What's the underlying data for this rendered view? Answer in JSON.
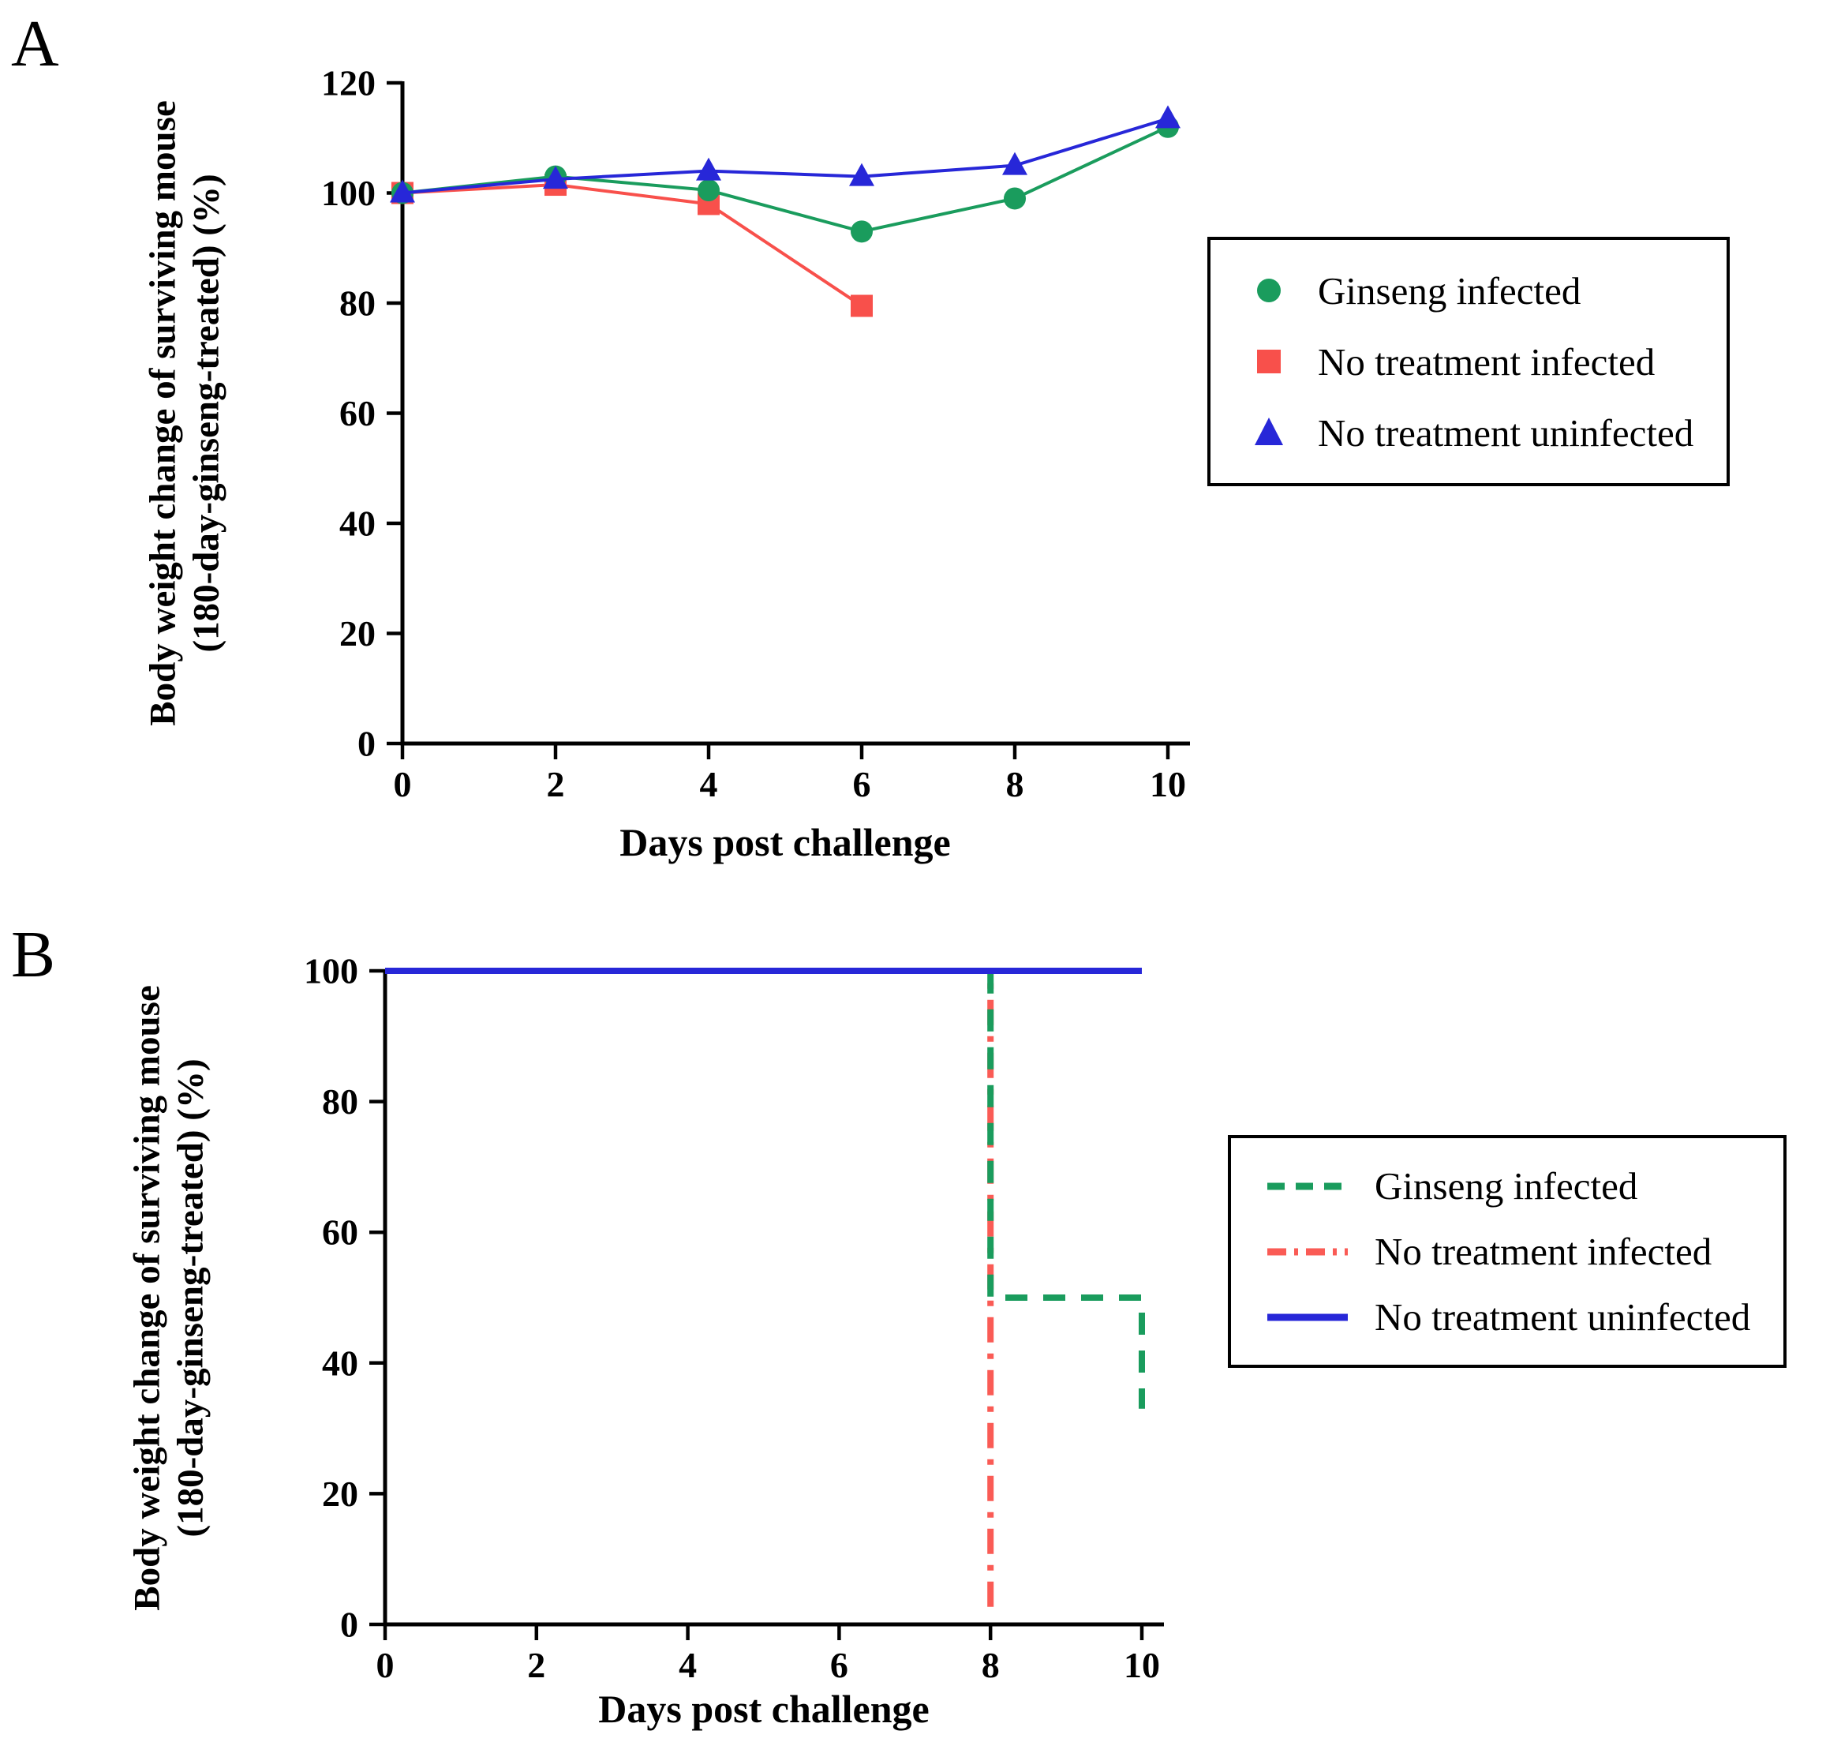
{
  "figure": {
    "background": "#ffffff",
    "panels": [
      {
        "letter": "A"
      },
      {
        "letter": "B"
      }
    ]
  },
  "chart_data": [
    {
      "type": "line",
      "panel": "A",
      "title": "",
      "xlabel": "Days post challenge",
      "ylabel_line1": "Body weight change of surviving mouse",
      "ylabel_line2": "(180-day-ginseng-treated) (%)",
      "xlim": [
        0,
        10
      ],
      "ylim": [
        0,
        120
      ],
      "xticks": [
        0,
        2,
        4,
        6,
        8,
        10
      ],
      "yticks": [
        0,
        20,
        40,
        60,
        80,
        100,
        120
      ],
      "grid": false,
      "legend_position": "right",
      "series": [
        {
          "name": "No treatment infected",
          "color": "#f8504b",
          "marker": "square",
          "line": "solid",
          "x": [
            0,
            2,
            4,
            6
          ],
          "y": [
            100,
            101.5,
            98,
            79.5
          ]
        },
        {
          "name": "Ginseng infected",
          "color": "#1a9c5d",
          "marker": "circle",
          "line": "solid",
          "x": [
            0,
            2,
            4,
            6,
            8,
            10
          ],
          "y": [
            100,
            103,
            100.5,
            93,
            99,
            112
          ]
        },
        {
          "name": "No treatment uninfected",
          "color": "#2727d8",
          "marker": "triangle",
          "line": "solid",
          "x": [
            0,
            2,
            4,
            6,
            8,
            10
          ],
          "y": [
            100,
            102.5,
            104,
            103,
            105,
            113.5
          ]
        }
      ],
      "legend": [
        {
          "label": "Ginseng infected",
          "color": "#1a9c5d",
          "marker": "circle"
        },
        {
          "label": "No treatment infected",
          "color": "#f8504b",
          "marker": "square"
        },
        {
          "label": "No treatment uninfected",
          "color": "#2727d8",
          "marker": "triangle"
        }
      ]
    },
    {
      "type": "step",
      "panel": "B",
      "title": "",
      "xlabel": "Days post challenge",
      "ylabel_line1": "Body weight change of surviving mouse",
      "ylabel_line2": "(180-day-ginseng-treated) (%)",
      "xlim": [
        0,
        10
      ],
      "ylim": [
        0,
        100
      ],
      "xticks": [
        0,
        2,
        4,
        6,
        8,
        10
      ],
      "yticks": [
        0,
        20,
        40,
        60,
        80,
        100
      ],
      "grid": false,
      "legend_position": "right",
      "series": [
        {
          "name": "No treatment infected",
          "color": "#fa5b55",
          "line": "dashdot",
          "points": [
            [
              0,
              100
            ],
            [
              8,
              100
            ],
            [
              8,
              2.5
            ]
          ]
        },
        {
          "name": "Ginseng infected",
          "color": "#1a9c5d",
          "line": "dashed",
          "points": [
            [
              0,
              100
            ],
            [
              8,
              100
            ],
            [
              8,
              50
            ],
            [
              10,
              50
            ],
            [
              10,
              33
            ]
          ]
        },
        {
          "name": "No treatment uninfected",
          "color": "#2727d8",
          "line": "solid",
          "points": [
            [
              0,
              100
            ],
            [
              10,
              100
            ]
          ]
        }
      ],
      "legend": [
        {
          "label": "Ginseng infected",
          "color": "#1a9c5d",
          "line": "dashed"
        },
        {
          "label": "No treatment infected",
          "color": "#fa5b55",
          "line": "dashdot"
        },
        {
          "label": "No treatment uninfected",
          "color": "#2727d8",
          "line": "solid"
        }
      ]
    }
  ]
}
